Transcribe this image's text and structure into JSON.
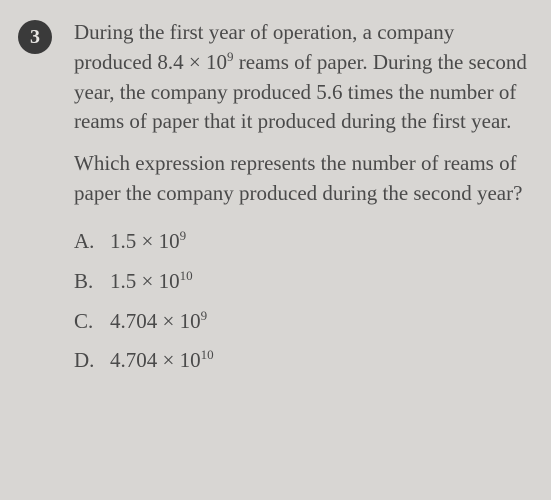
{
  "question": {
    "number": "3",
    "paragraph1_parts": {
      "pre": "During the first year of operation, a company produced 8.4 × 10",
      "exp": "9",
      "post": " reams of paper. During the second year, the company produced 5.6 times the number of reams of paper that it produced during the first year."
    },
    "paragraph2": "Which expression represents the number of reams of paper the company produced during the second year?",
    "options": [
      {
        "letter": "A.",
        "base": "1.5 × 10",
        "exp": "9"
      },
      {
        "letter": "B.",
        "base": "1.5 × 10",
        "exp": "10"
      },
      {
        "letter": "C.",
        "base": "4.704 × 10",
        "exp": "9"
      },
      {
        "letter": "D.",
        "base": "4.704 × 10",
        "exp": "10"
      }
    ]
  },
  "colors": {
    "background": "#d8d6d3",
    "text": "#4a4a4a",
    "badge_bg": "#3a3a3a",
    "badge_text": "#e8e6e3"
  }
}
